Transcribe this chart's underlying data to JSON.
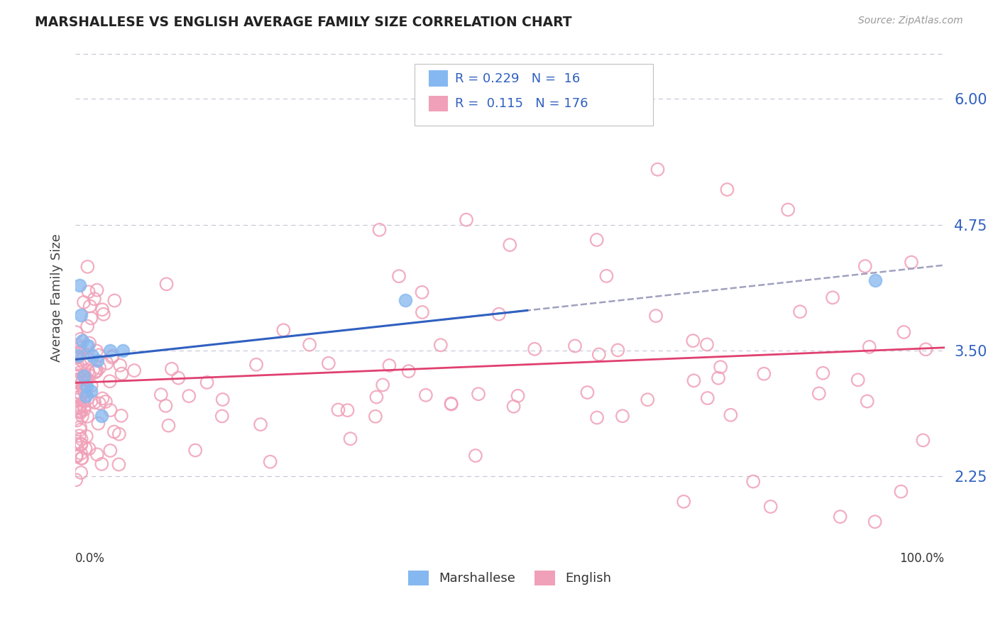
{
  "title": "MARSHALLESE VS ENGLISH AVERAGE FAMILY SIZE CORRELATION CHART",
  "source": "Source: ZipAtlas.com",
  "ylabel": "Average Family Size",
  "yticks": [
    2.25,
    3.5,
    4.75,
    6.0
  ],
  "xlim": [
    0.0,
    1.0
  ],
  "ylim": [
    1.55,
    6.5
  ],
  "R_marshallese": 0.229,
  "N_marshallese": 16,
  "R_english": 0.115,
  "N_english": 176,
  "marshallese_color": "#85b8f0",
  "english_color": "#f0a0b8",
  "trendline_marshallese_color": "#3060c0",
  "trendline_english_color": "#e04070",
  "trendline_overall_color": "#a0a0c0",
  "grid_color": "#c8c8d8",
  "title_color": "#222222",
  "axis_label_color": "#444444",
  "tick_color": "#3060c0",
  "legend_R_color": "#3060c0",
  "background_color": "#ffffff"
}
